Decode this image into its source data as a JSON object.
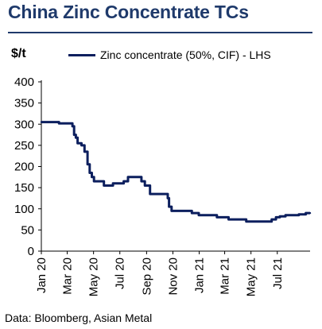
{
  "title": "China Zinc Concentrate TCs",
  "y_unit": "$/t",
  "legend_label": "Zinc concentrate (50%, CIF) - LHS",
  "source": "Data: Bloomberg, Asian Metal",
  "colors": {
    "title": "#1f3a6b",
    "series": "#0c1f5e",
    "axis": "#000000"
  },
  "chart_data": {
    "type": "line",
    "title": "China Zinc Concentrate TCs",
    "ylabel": "$/t",
    "xlabel": "",
    "ylim": [
      0,
      400
    ],
    "yticks": [
      0,
      50,
      100,
      150,
      200,
      250,
      300,
      350,
      400
    ],
    "xlim": [
      "2020-01-01",
      "2021-09-15"
    ],
    "xticks": [
      {
        "date": "2020-01-01",
        "label": "Jan 20"
      },
      {
        "date": "2020-03-01",
        "label": "Mar 20"
      },
      {
        "date": "2020-05-01",
        "label": "May 20"
      },
      {
        "date": "2020-07-01",
        "label": "Jul 20"
      },
      {
        "date": "2020-09-01",
        "label": "Sep 20"
      },
      {
        "date": "2020-11-01",
        "label": "Nov 20"
      },
      {
        "date": "2021-01-01",
        "label": "Jan 21"
      },
      {
        "date": "2021-03-01",
        "label": "Mar 21"
      },
      {
        "date": "2021-05-01",
        "label": "May 21"
      },
      {
        "date": "2021-07-01",
        "label": "Jul 21"
      }
    ],
    "grid": false,
    "legend_position": "top",
    "series": [
      {
        "name": "Zinc concentrate (50%, CIF) - LHS",
        "step": true,
        "points": [
          {
            "x": "2020-01-01",
            "y": 305
          },
          {
            "x": "2020-02-10",
            "y": 305
          },
          {
            "x": "2020-02-11",
            "y": 302
          },
          {
            "x": "2020-03-10",
            "y": 302
          },
          {
            "x": "2020-03-13",
            "y": 295
          },
          {
            "x": "2020-03-17",
            "y": 275
          },
          {
            "x": "2020-03-21",
            "y": 268
          },
          {
            "x": "2020-03-25",
            "y": 255
          },
          {
            "x": "2020-04-03",
            "y": 250
          },
          {
            "x": "2020-04-10",
            "y": 235
          },
          {
            "x": "2020-04-17",
            "y": 205
          },
          {
            "x": "2020-04-22",
            "y": 185
          },
          {
            "x": "2020-04-27",
            "y": 175
          },
          {
            "x": "2020-05-02",
            "y": 165
          },
          {
            "x": "2020-05-25",
            "y": 155
          },
          {
            "x": "2020-06-15",
            "y": 160
          },
          {
            "x": "2020-07-10",
            "y": 165
          },
          {
            "x": "2020-07-20",
            "y": 175
          },
          {
            "x": "2020-08-20",
            "y": 165
          },
          {
            "x": "2020-08-28",
            "y": 155
          },
          {
            "x": "2020-09-09",
            "y": 135
          },
          {
            "x": "2020-10-20",
            "y": 125
          },
          {
            "x": "2020-10-23",
            "y": 105
          },
          {
            "x": "2020-10-29",
            "y": 95
          },
          {
            "x": "2020-12-15",
            "y": 90
          },
          {
            "x": "2020-12-31",
            "y": 85
          },
          {
            "x": "2021-02-11",
            "y": 80
          },
          {
            "x": "2021-03-10",
            "y": 75
          },
          {
            "x": "2021-04-20",
            "y": 70
          },
          {
            "x": "2021-06-18",
            "y": 75
          },
          {
            "x": "2021-06-28",
            "y": 80
          },
          {
            "x": "2021-07-07",
            "y": 82
          },
          {
            "x": "2021-07-20",
            "y": 85
          },
          {
            "x": "2021-08-20",
            "y": 87
          },
          {
            "x": "2021-09-05",
            "y": 90
          },
          {
            "x": "2021-09-15",
            "y": 90
          }
        ]
      }
    ]
  }
}
